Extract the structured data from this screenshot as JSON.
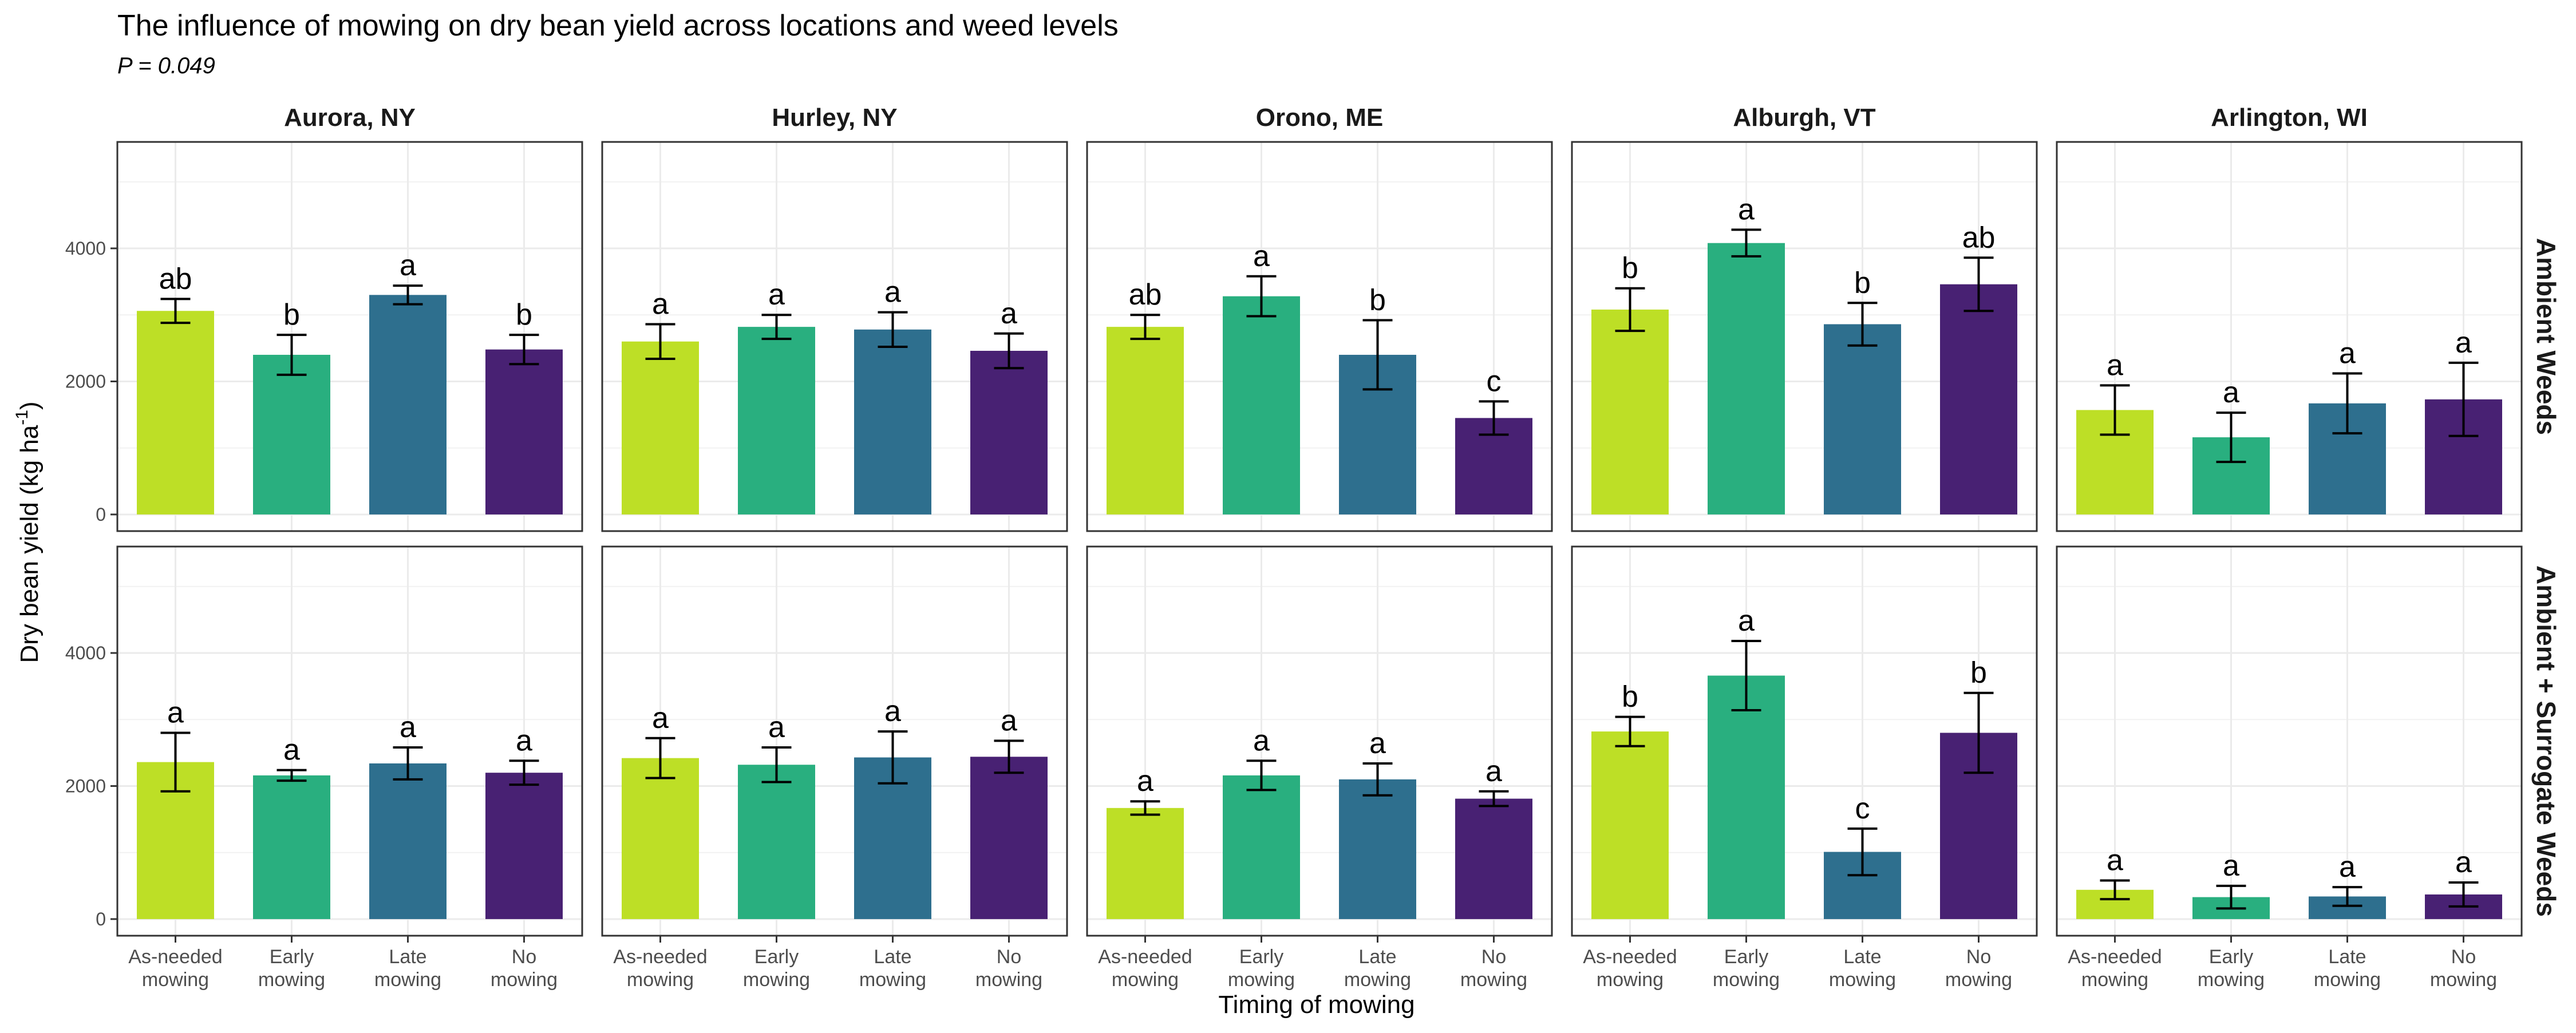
{
  "chart_data": {
    "type": "bar",
    "title": "The influence of mowing on dry bean yield across locations and weed levels",
    "subtitle": "P = 0.049",
    "xlabel": "Timing of mowing",
    "ylabel": "Dry bean yield (kg ha",
    "ylabel_superscript": "-1",
    "ylabel_suffix": ")",
    "ylim": [
      -250,
      5600
    ],
    "yticks": [
      0,
      2000,
      4000
    ],
    "grid": true,
    "legend": "none",
    "categories": [
      "As-needed mowing",
      "Early mowing",
      "Late mowing",
      "No mowing"
    ],
    "category_lines": [
      [
        "As-needed",
        "mowing"
      ],
      [
        "Early",
        "mowing"
      ],
      [
        "Late",
        "mowing"
      ],
      [
        "No",
        "mowing"
      ]
    ],
    "colors": [
      "#bddf26",
      "#29af7f",
      "#2e6f8e",
      "#482173"
    ],
    "locations": [
      "Aurora, NY",
      "Hurley, NY",
      "Orono, ME",
      "Alburgh, VT",
      "Arlington, WI"
    ],
    "weed_levels": [
      "Ambient Weeds",
      "Ambient + Surrogate Weeds"
    ],
    "panels": [
      {
        "location": "Aurora, NY",
        "weeds": "Ambient Weeds",
        "values": [
          3060,
          2400,
          3300,
          2480
        ],
        "err_low": [
          2880,
          2100,
          3160,
          2260
        ],
        "err_high": [
          3240,
          2700,
          3440,
          2700
        ],
        "letters": [
          "ab",
          "b",
          "a",
          "b"
        ]
      },
      {
        "location": "Hurley, NY",
        "weeds": "Ambient Weeds",
        "values": [
          2600,
          2820,
          2780,
          2460
        ],
        "err_low": [
          2340,
          2640,
          2520,
          2200
        ],
        "err_high": [
          2860,
          3000,
          3040,
          2720
        ],
        "letters": [
          "a",
          "a",
          "a",
          "a"
        ]
      },
      {
        "location": "Orono, ME",
        "weeds": "Ambient Weeds",
        "values": [
          2820,
          3280,
          2400,
          1450
        ],
        "err_low": [
          2640,
          2980,
          1880,
          1200
        ],
        "err_high": [
          3000,
          3580,
          2920,
          1700
        ],
        "letters": [
          "ab",
          "a",
          "b",
          "c"
        ]
      },
      {
        "location": "Alburgh, VT",
        "weeds": "Ambient Weeds",
        "values": [
          3080,
          4080,
          2860,
          3460
        ],
        "err_low": [
          2760,
          3880,
          2540,
          3060
        ],
        "err_high": [
          3400,
          4280,
          3180,
          3860
        ],
        "letters": [
          "b",
          "a",
          "b",
          "ab"
        ]
      },
      {
        "location": "Arlington, WI",
        "weeds": "Ambient Weeds",
        "values": [
          1570,
          1160,
          1670,
          1730
        ],
        "err_low": [
          1200,
          790,
          1220,
          1180
        ],
        "err_high": [
          1940,
          1530,
          2120,
          2280
        ],
        "letters": [
          "a",
          "a",
          "a",
          "a"
        ]
      },
      {
        "location": "Aurora, NY",
        "weeds": "Ambient + Surrogate Weeds",
        "values": [
          2360,
          2160,
          2340,
          2200
        ],
        "err_low": [
          1920,
          2080,
          2100,
          2020
        ],
        "err_high": [
          2800,
          2240,
          2580,
          2380
        ],
        "letters": [
          "a",
          "a",
          "a",
          "a"
        ]
      },
      {
        "location": "Hurley, NY",
        "weeds": "Ambient + Surrogate Weeds",
        "values": [
          2420,
          2320,
          2430,
          2440
        ],
        "err_low": [
          2120,
          2060,
          2040,
          2200
        ],
        "err_high": [
          2720,
          2580,
          2820,
          2680
        ],
        "letters": [
          "a",
          "a",
          "a",
          "a"
        ]
      },
      {
        "location": "Orono, ME",
        "weeds": "Ambient + Surrogate Weeds",
        "values": [
          1670,
          2160,
          2100,
          1810
        ],
        "err_low": [
          1570,
          1940,
          1860,
          1700
        ],
        "err_high": [
          1770,
          2380,
          2340,
          1920
        ],
        "letters": [
          "a",
          "a",
          "a",
          "a"
        ]
      },
      {
        "location": "Alburgh, VT",
        "weeds": "Ambient + Surrogate Weeds",
        "values": [
          2820,
          3660,
          1010,
          2800
        ],
        "err_low": [
          2600,
          3140,
          660,
          2200
        ],
        "err_high": [
          3040,
          4180,
          1360,
          3400
        ],
        "letters": [
          "b",
          "a",
          "c",
          "b"
        ]
      },
      {
        "location": "Arlington, WI",
        "weeds": "Ambient + Surrogate Weeds",
        "values": [
          440,
          330,
          340,
          370
        ],
        "err_low": [
          300,
          160,
          200,
          190
        ],
        "err_high": [
          580,
          500,
          480,
          550
        ],
        "letters": [
          "a",
          "a",
          "a",
          "a"
        ]
      }
    ]
  }
}
